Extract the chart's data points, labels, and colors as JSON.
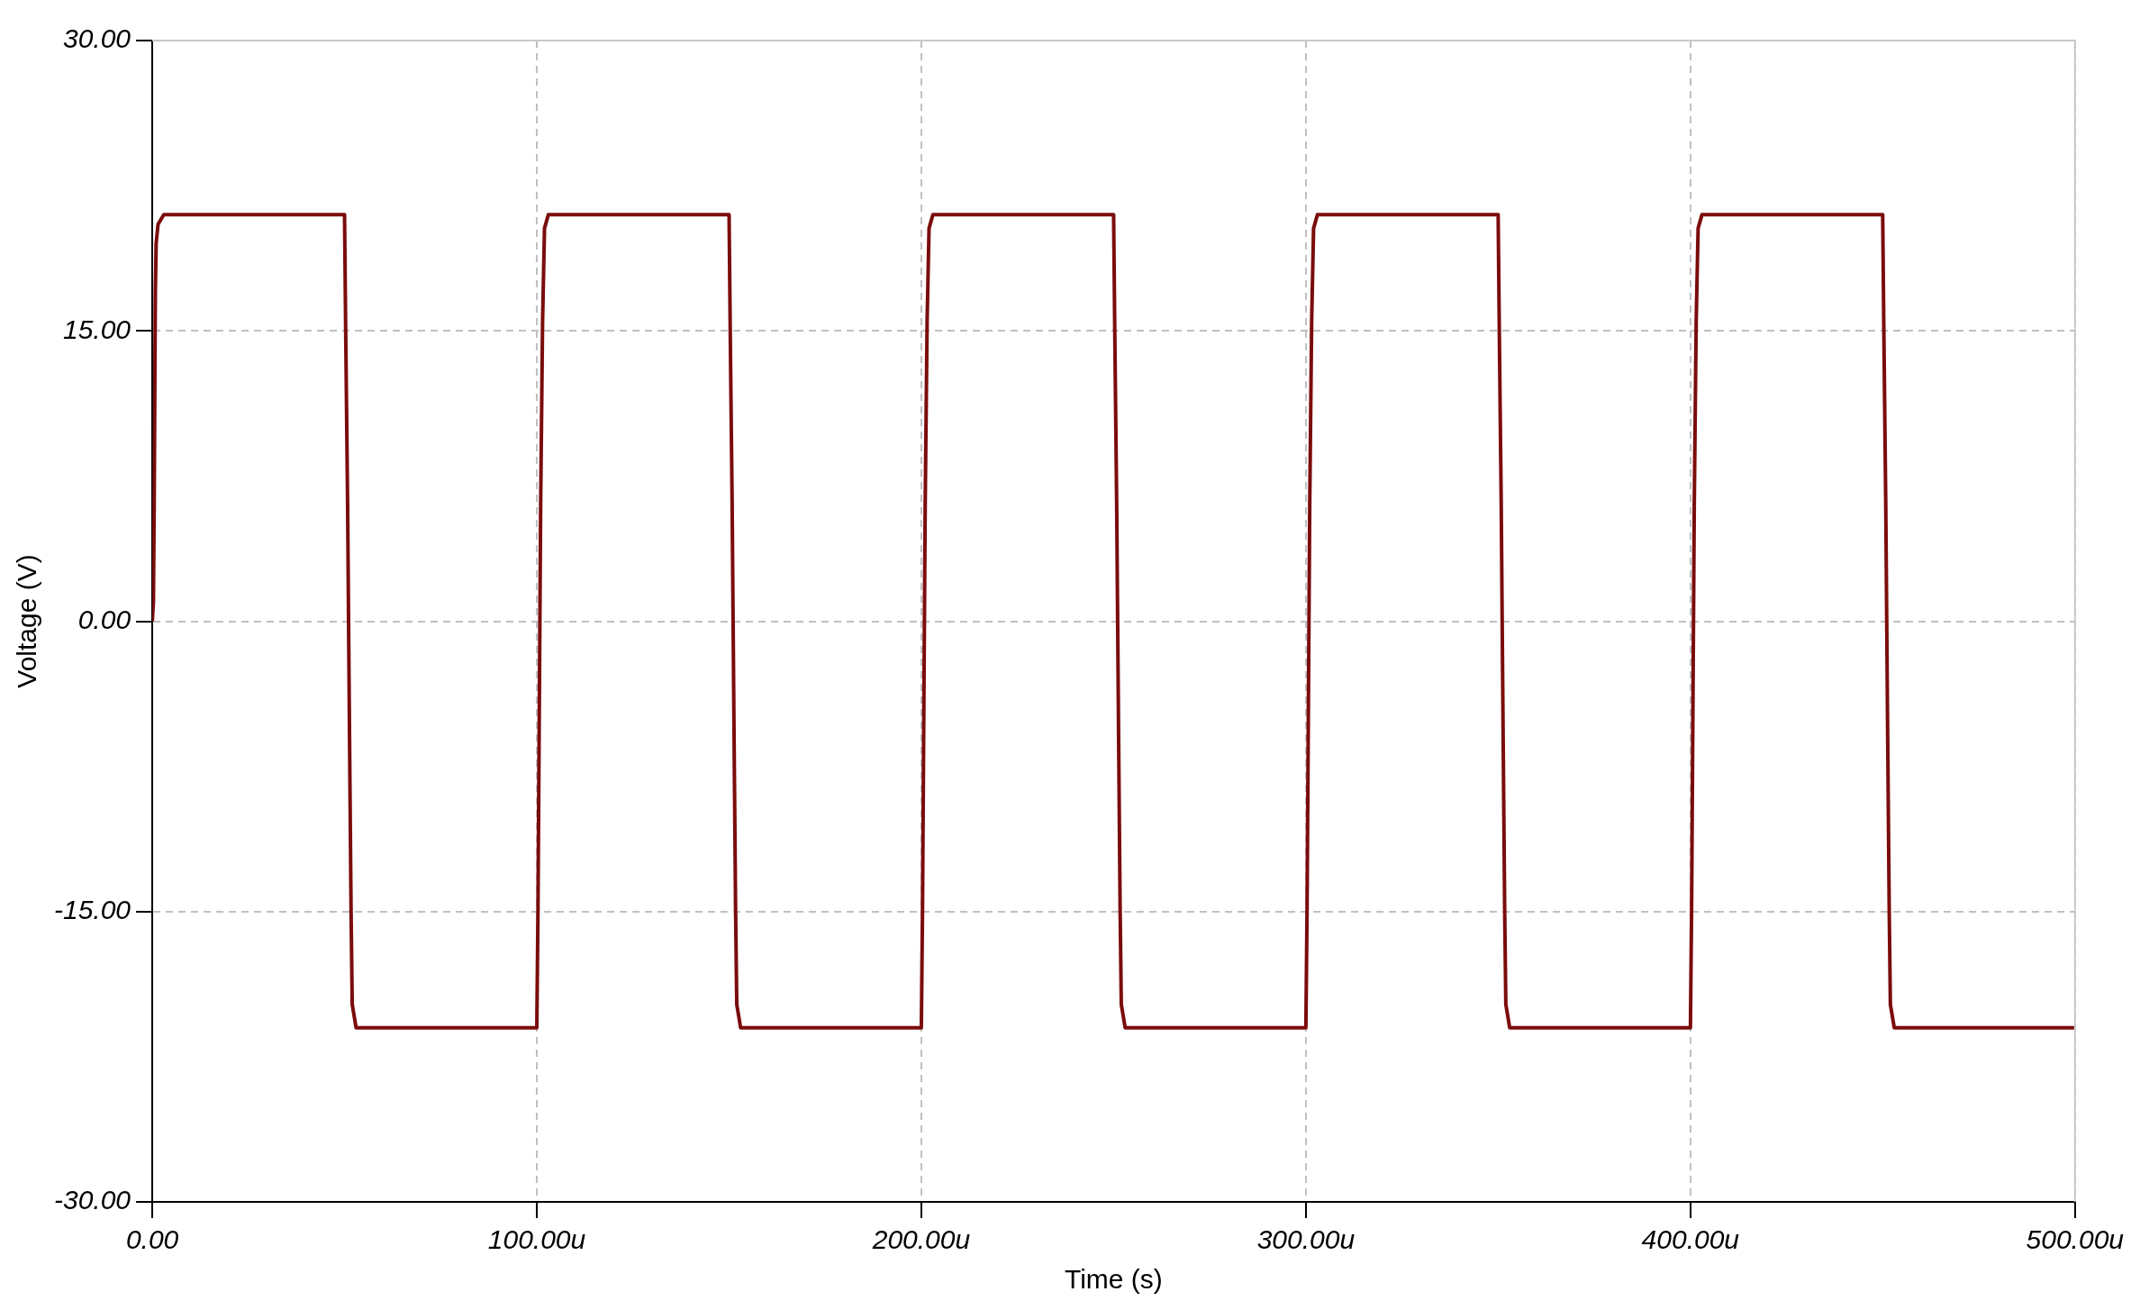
{
  "chart_data": {
    "type": "line",
    "xlabel": "Time (s)",
    "ylabel": "Voltage (V)",
    "x": [
      0,
      0.3,
      0.5,
      0.8,
      1.0,
      1.5,
      3,
      50,
      50.3,
      50.8,
      51.3,
      51.7,
      52,
      53,
      100,
      100.3,
      100.6,
      101,
      101.5,
      102,
      103,
      150,
      150.3,
      150.8,
      151.3,
      151.7,
      152,
      153,
      200,
      200.3,
      200.6,
      201,
      201.5,
      202,
      203,
      250,
      250.3,
      250.8,
      251.3,
      251.7,
      252,
      253,
      300,
      300.3,
      300.6,
      301,
      301.5,
      302,
      303,
      350,
      350.3,
      350.8,
      351.3,
      351.7,
      352,
      353,
      400,
      400.3,
      400.6,
      401,
      401.5,
      402,
      403,
      450,
      450.3,
      450.8,
      451.3,
      451.7,
      452,
      453,
      500
    ],
    "series": [
      {
        "color": "#7b0c0c",
        "values": [
          0,
          1,
          6,
          17,
          19.5,
          20.5,
          21,
          21,
          15,
          6,
          -6,
          -15,
          -19.8,
          -21,
          -21,
          -15,
          -6,
          6,
          15.5,
          20.3,
          21,
          21,
          15,
          6,
          -6,
          -15,
          -19.8,
          -21,
          -21,
          -15,
          -6,
          6,
          15.5,
          20.3,
          21,
          21,
          15,
          6,
          -6,
          -15,
          -19.8,
          -21,
          -21,
          -15,
          -6,
          6,
          15.5,
          20.3,
          21,
          21,
          15,
          6,
          -6,
          -15,
          -19.8,
          -21,
          -21,
          -15,
          -6,
          6,
          15.5,
          20.3,
          21,
          21,
          15,
          6,
          -6,
          -15,
          -19.8,
          -21,
          -21
        ]
      }
    ],
    "xlim": [
      0,
      500
    ],
    "xticks": [
      {
        "value": 0,
        "label": "0.00"
      },
      {
        "value": 100,
        "label": "100.00u"
      },
      {
        "value": 200,
        "label": "200.00u"
      },
      {
        "value": 300,
        "label": "300.00u"
      },
      {
        "value": 400,
        "label": "400.00u"
      },
      {
        "value": 500,
        "label": "500.00u"
      }
    ],
    "ylim": [
      -30,
      30
    ],
    "yticks": [
      {
        "value": -30,
        "label": "-30.00"
      },
      {
        "value": -15,
        "label": "-15.00"
      },
      {
        "value": 0,
        "label": "0.00"
      },
      {
        "value": 15,
        "label": "15.00"
      },
      {
        "value": 30,
        "label": "30.00"
      }
    ],
    "grid": true,
    "legend": false,
    "marker": "none",
    "line_style": "solid"
  }
}
